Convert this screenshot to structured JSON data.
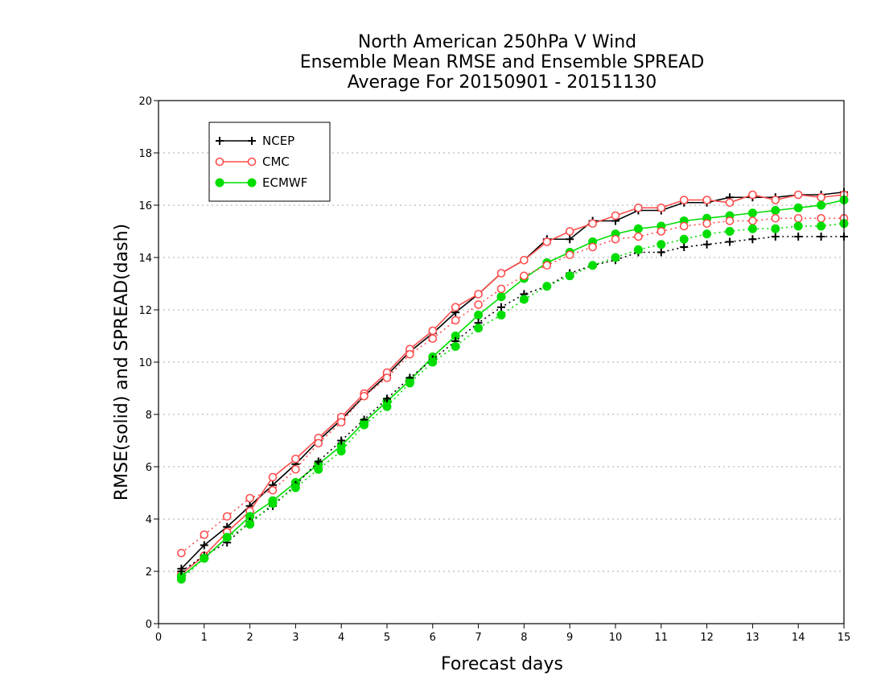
{
  "colors": {
    "NCEP": "#000000",
    "CMC": "#ff4d4d",
    "ECMWF": "#00dd00",
    "grid": "#aaaaaa"
  },
  "chart_data": {
    "type": "line",
    "title": [
      "North American 250hPa V Wind",
      "Ensemble Mean RMSE and Ensemble SPREAD",
      "Average For 20150901 - 20151130"
    ],
    "xlabel": "Forecast days",
    "ylabel": "RMSE(solid) and SPREAD(dash)",
    "xlim": [
      0,
      15
    ],
    "ylim": [
      0,
      20
    ],
    "xticks": [
      0,
      1,
      2,
      3,
      4,
      5,
      6,
      7,
      8,
      9,
      10,
      11,
      12,
      13,
      14,
      15
    ],
    "yticks": [
      0,
      2,
      4,
      6,
      8,
      10,
      12,
      14,
      16,
      18,
      20
    ],
    "grid": "horizontal dotted",
    "legend_position": "top-left",
    "x": [
      0.5,
      1,
      1.5,
      2,
      2.5,
      3,
      3.5,
      4,
      4.5,
      5,
      5.5,
      6,
      6.5,
      7,
      7.5,
      8,
      8.5,
      9,
      9.5,
      10,
      10.5,
      11,
      11.5,
      12,
      12.5,
      13,
      13.5,
      14,
      14.5,
      15
    ],
    "series": [
      {
        "name": "NCEP",
        "kind": "rmse",
        "marker": "plus",
        "values": [
          2.1,
          3.0,
          3.7,
          4.5,
          5.3,
          6.1,
          7.0,
          7.8,
          8.7,
          9.5,
          10.4,
          11.1,
          11.9,
          12.6,
          13.4,
          13.9,
          14.7,
          14.7,
          15.4,
          15.4,
          15.8,
          15.8,
          16.1,
          16.1,
          16.3,
          16.3,
          16.3,
          16.4,
          16.4,
          16.5
        ]
      },
      {
        "name": "CMC",
        "kind": "rmse",
        "marker": "circle",
        "values": [
          1.9,
          2.6,
          3.5,
          4.3,
          5.6,
          6.3,
          7.1,
          7.9,
          8.8,
          9.6,
          10.5,
          11.2,
          12.1,
          12.6,
          13.4,
          13.9,
          14.6,
          15.0,
          15.3,
          15.6,
          15.9,
          15.9,
          16.2,
          16.2,
          16.1,
          16.4,
          16.2,
          16.4,
          16.3,
          16.4
        ]
      },
      {
        "name": "ECMWF",
        "kind": "rmse",
        "marker": "dot",
        "values": [
          1.8,
          2.5,
          3.3,
          4.1,
          4.7,
          5.4,
          6.1,
          6.8,
          7.7,
          8.5,
          9.3,
          10.2,
          11.0,
          11.8,
          12.5,
          13.2,
          13.8,
          14.2,
          14.6,
          14.9,
          15.1,
          15.2,
          15.4,
          15.5,
          15.6,
          15.7,
          15.8,
          15.9,
          16.0,
          16.2
        ]
      },
      {
        "name": "NCEP",
        "kind": "spread",
        "marker": "plus",
        "values": [
          2.0,
          2.6,
          3.1,
          3.9,
          4.5,
          5.3,
          6.2,
          7.0,
          7.8,
          8.6,
          9.4,
          10.1,
          10.8,
          11.5,
          12.1,
          12.6,
          12.9,
          13.4,
          13.7,
          13.9,
          14.2,
          14.2,
          14.4,
          14.5,
          14.6,
          14.7,
          14.8,
          14.8,
          14.8,
          14.8
        ]
      },
      {
        "name": "CMC",
        "kind": "spread",
        "marker": "circle",
        "values": [
          2.7,
          3.4,
          4.1,
          4.8,
          5.1,
          5.9,
          6.9,
          7.7,
          8.7,
          9.4,
          10.3,
          10.9,
          11.6,
          12.2,
          12.8,
          13.3,
          13.7,
          14.1,
          14.4,
          14.7,
          14.8,
          15.0,
          15.2,
          15.3,
          15.4,
          15.4,
          15.5,
          15.5,
          15.5,
          15.5
        ]
      },
      {
        "name": "ECMWF",
        "kind": "spread",
        "marker": "dot",
        "values": [
          1.7,
          2.5,
          3.3,
          3.8,
          4.6,
          5.2,
          5.9,
          6.6,
          7.6,
          8.3,
          9.2,
          10.0,
          10.6,
          11.3,
          11.8,
          12.4,
          12.9,
          13.3,
          13.7,
          14.0,
          14.3,
          14.5,
          14.7,
          14.9,
          15.0,
          15.1,
          15.1,
          15.2,
          15.2,
          15.3
        ]
      }
    ],
    "legend": [
      "NCEP",
      "CMC",
      "ECMWF"
    ]
  }
}
